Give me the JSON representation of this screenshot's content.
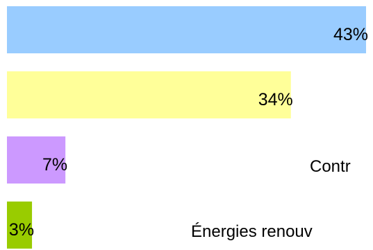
{
  "chart_data": {
    "type": "bar",
    "orientation": "horizontal",
    "grid": false,
    "legend": "none",
    "xlim": [
      0,
      43
    ],
    "categories": [
      "",
      "",
      "Contr",
      "Énergies renouv"
    ],
    "values": [
      43,
      34,
      7,
      3
    ],
    "data_labels": [
      "43%",
      "34%",
      "7%",
      "3%"
    ],
    "colors": [
      "#99ccff",
      "#ffff99",
      "#cc99ff",
      "#99cc00"
    ]
  }
}
